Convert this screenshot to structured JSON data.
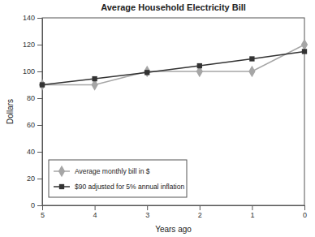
{
  "chart_data": {
    "type": "line",
    "title": "Average Household Electricity Bill",
    "x_label": "Years ago",
    "y_label": "Dollars",
    "x": [
      5,
      4,
      3,
      2,
      1,
      0
    ],
    "series": [
      {
        "name": "Average monthly bill in $",
        "color": "#a6a6a6",
        "marker": "diamond",
        "line_style": "solid",
        "values": [
          90,
          90,
          100,
          100,
          100,
          120
        ]
      },
      {
        "name": "$90 adjusted for 5% annual inflation",
        "color": "#333333",
        "marker": "square",
        "line_style": "solid",
        "values": [
          90,
          94.5,
          99.2,
          104.2,
          109.4,
          114.9
        ]
      }
    ],
    "xlim": [
      5,
      0
    ],
    "xticks": [
      5,
      4,
      3,
      2,
      1,
      0
    ],
    "ylim": [
      0,
      140
    ],
    "yticks": [
      0,
      20,
      40,
      60,
      80,
      100,
      120,
      140
    ],
    "grid": false,
    "legend": "lower left"
  }
}
